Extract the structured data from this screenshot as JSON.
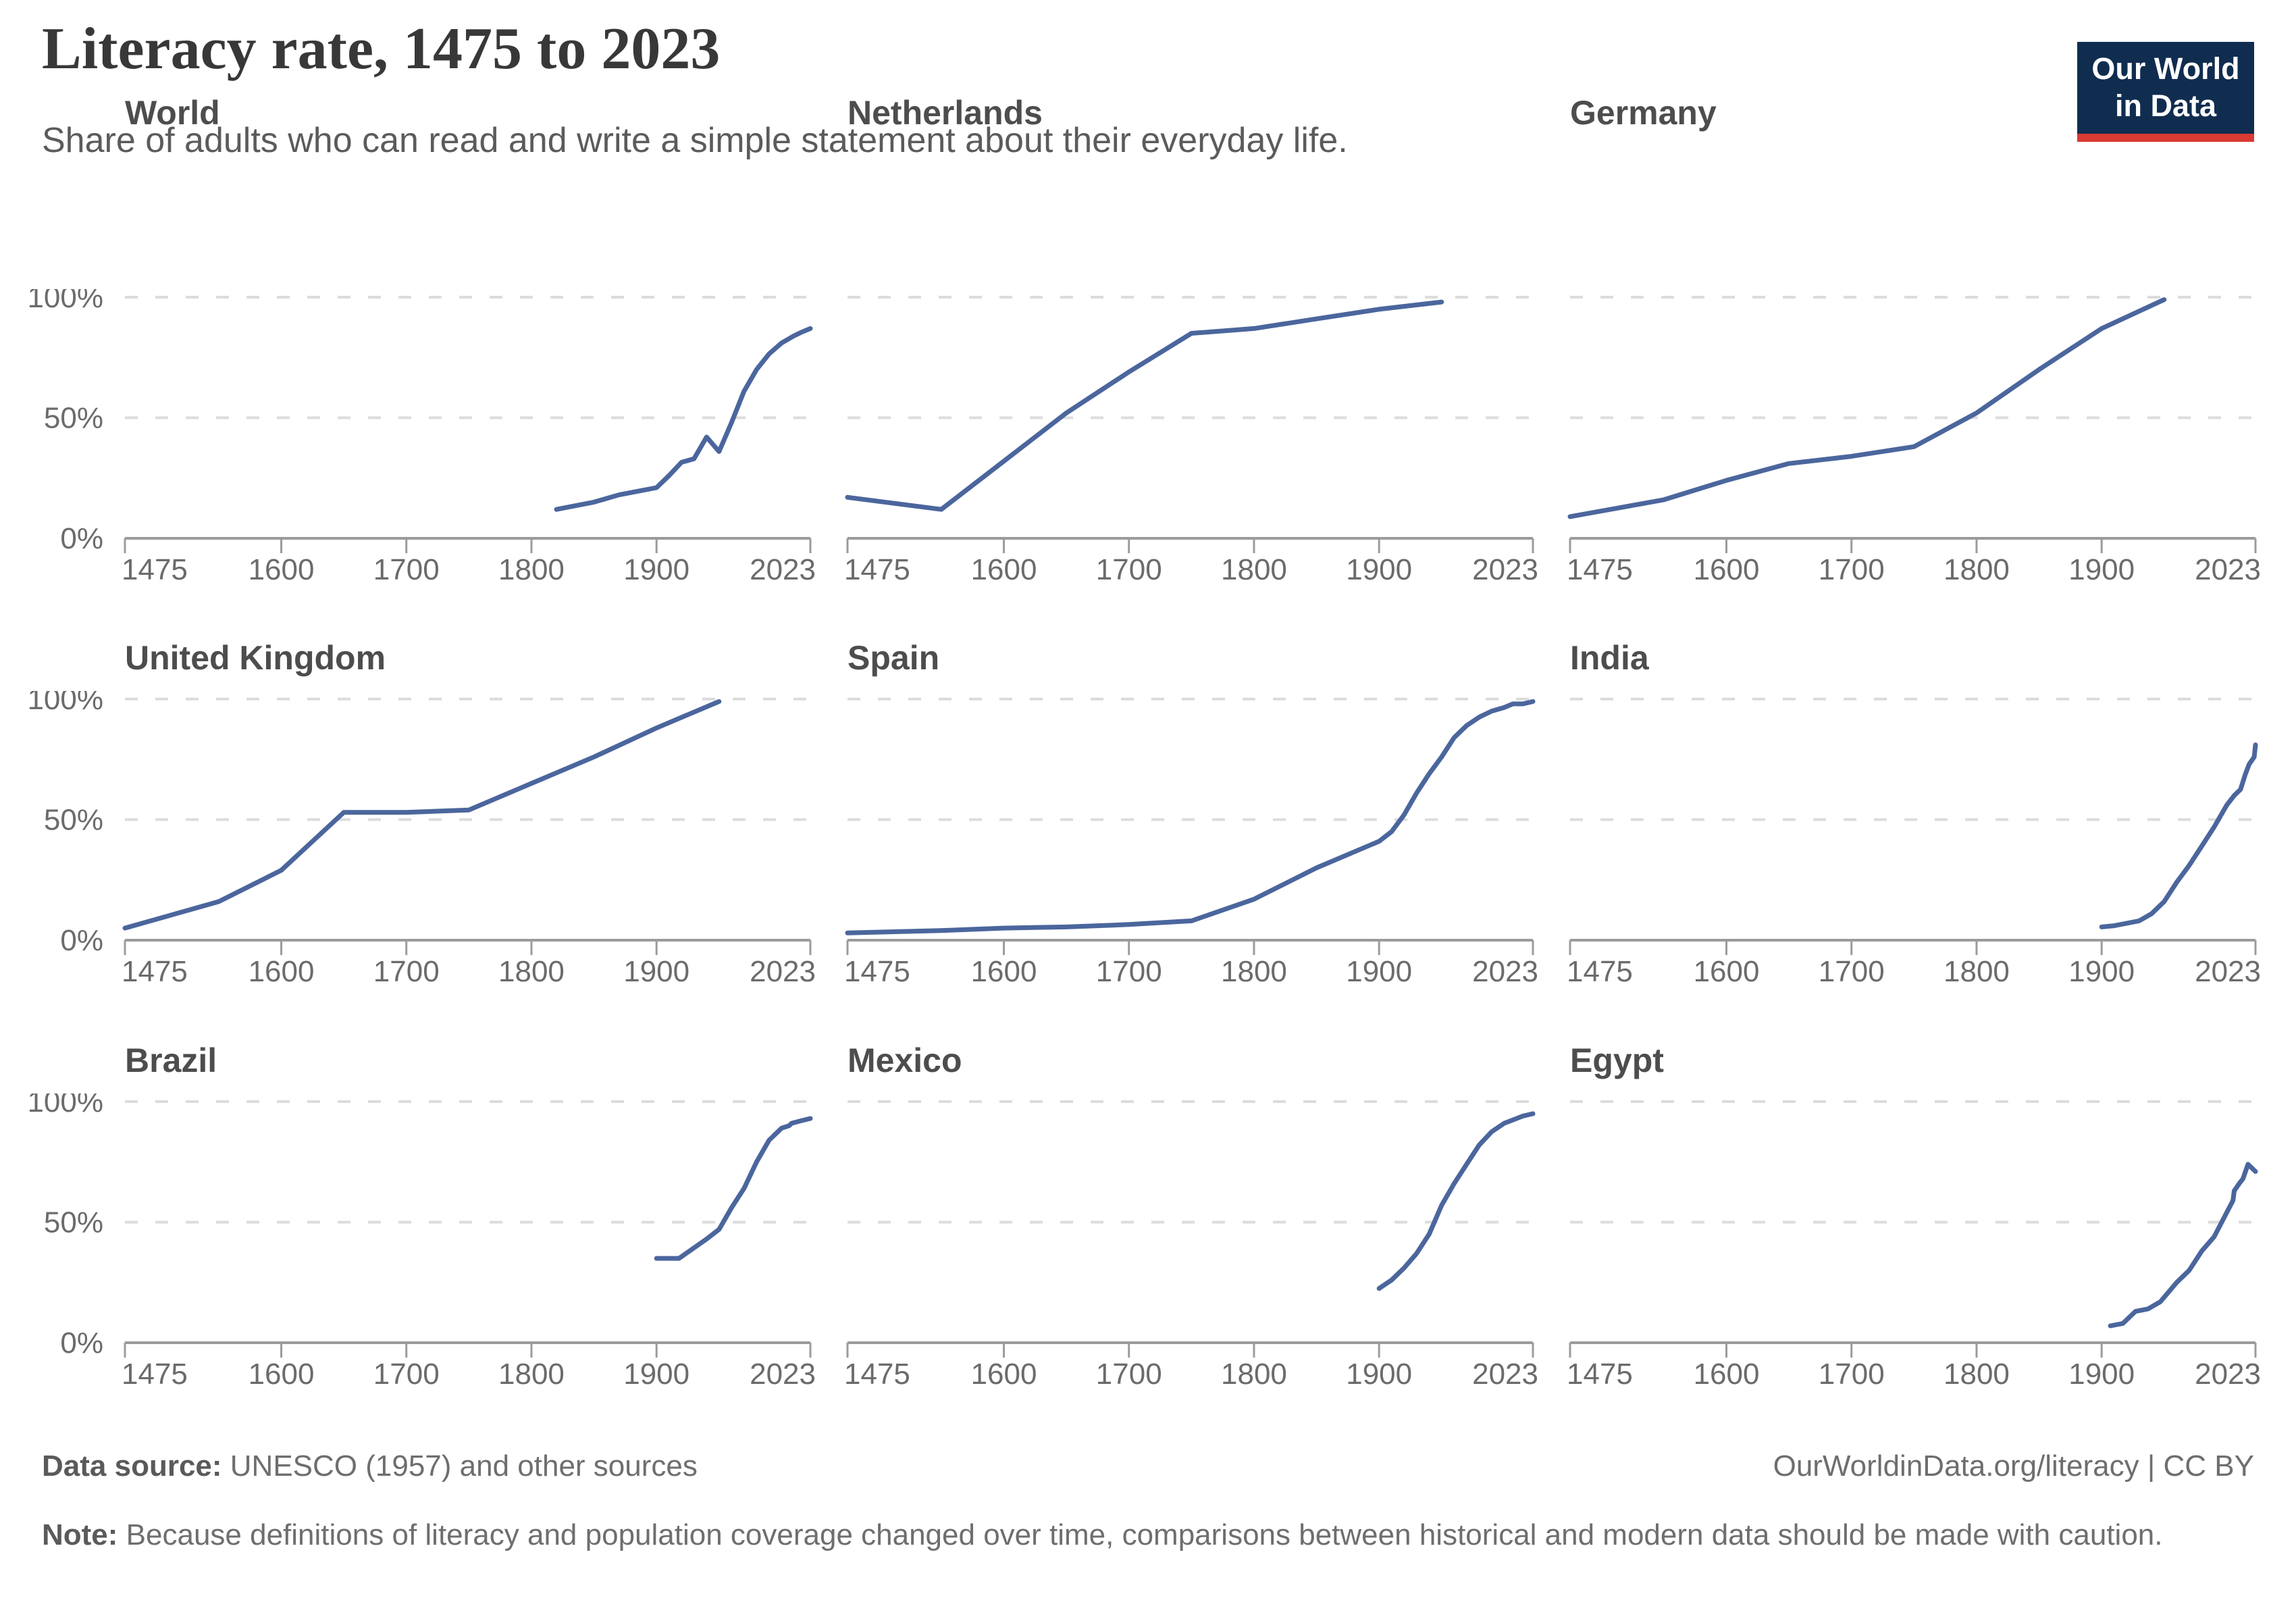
{
  "header": {
    "title": "Literacy rate, 1475 to 2023",
    "subtitle": "Share of adults who can read and write a simple statement about their everyday life.",
    "logo_line1": "Our World",
    "logo_line2": "in Data"
  },
  "colors": {
    "line": "#4b669d",
    "gridline": "#dcdcdc",
    "axis": "#9b9b9b",
    "tick_text": "#6b6b6b",
    "chart_title": "#4d4d4d",
    "logo_bg": "#102d4f",
    "logo_red": "#d93a34"
  },
  "axis": {
    "x_ticks": [
      1475,
      1600,
      1700,
      1800,
      1900,
      2023
    ],
    "x_range": [
      1475,
      2023
    ],
    "ylim": [
      0,
      100
    ],
    "y_gridlines": [
      50,
      100
    ],
    "y_labels": [
      "0%",
      "50%",
      "100%"
    ],
    "grid": "dashed horizontal at 50% and 100%, y labels on left column only"
  },
  "chart_data": [
    {
      "type": "line",
      "title": "World",
      "xlabel": "",
      "ylabel": "",
      "x_range": [
        1475,
        2023
      ],
      "ylim": [
        0,
        100
      ],
      "points": [
        [
          1820,
          12
        ],
        [
          1850,
          15
        ],
        [
          1870,
          18
        ],
        [
          1890,
          20
        ],
        [
          1900,
          21
        ],
        [
          1910,
          26
        ],
        [
          1920,
          31.5
        ],
        [
          1930,
          33
        ],
        [
          1940,
          42
        ],
        [
          1950,
          36
        ],
        [
          1960,
          48
        ],
        [
          1970,
          61
        ],
        [
          1980,
          70
        ],
        [
          1990,
          76.5
        ],
        [
          2000,
          81
        ],
        [
          2010,
          84
        ],
        [
          2016,
          85.5
        ],
        [
          2023,
          87
        ]
      ]
    },
    {
      "type": "line",
      "title": "Netherlands",
      "xlabel": "",
      "ylabel": "",
      "x_range": [
        1475,
        2023
      ],
      "ylim": [
        0,
        100
      ],
      "points": [
        [
          1475,
          17
        ],
        [
          1550,
          12
        ],
        [
          1600,
          32
        ],
        [
          1650,
          52
        ],
        [
          1700,
          69
        ],
        [
          1750,
          85
        ],
        [
          1800,
          87
        ],
        [
          1850,
          91
        ],
        [
          1900,
          95
        ],
        [
          1950,
          98
        ]
      ]
    },
    {
      "type": "line",
      "title": "Germany",
      "xlabel": "",
      "ylabel": "",
      "x_range": [
        1475,
        2023
      ],
      "ylim": [
        0,
        100
      ],
      "points": [
        [
          1475,
          9
        ],
        [
          1550,
          16
        ],
        [
          1600,
          24
        ],
        [
          1650,
          31
        ],
        [
          1700,
          34
        ],
        [
          1750,
          38
        ],
        [
          1800,
          52
        ],
        [
          1850,
          70
        ],
        [
          1900,
          87
        ],
        [
          1950,
          99
        ]
      ]
    },
    {
      "type": "line",
      "title": "United Kingdom",
      "xlabel": "",
      "ylabel": "",
      "x_range": [
        1475,
        2023
      ],
      "ylim": [
        0,
        100
      ],
      "points": [
        [
          1475,
          5
        ],
        [
          1550,
          16
        ],
        [
          1600,
          29
        ],
        [
          1650,
          53
        ],
        [
          1700,
          53
        ],
        [
          1750,
          54
        ],
        [
          1800,
          65
        ],
        [
          1850,
          76
        ],
        [
          1900,
          88
        ],
        [
          1950,
          99
        ]
      ]
    },
    {
      "type": "line",
      "title": "Spain",
      "xlabel": "",
      "ylabel": "",
      "x_range": [
        1475,
        2023
      ],
      "ylim": [
        0,
        100
      ],
      "points": [
        [
          1475,
          3
        ],
        [
          1550,
          4
        ],
        [
          1600,
          5
        ],
        [
          1650,
          5.5
        ],
        [
          1700,
          6.5
        ],
        [
          1750,
          8
        ],
        [
          1800,
          17
        ],
        [
          1850,
          30
        ],
        [
          1900,
          41
        ],
        [
          1910,
          45
        ],
        [
          1920,
          52
        ],
        [
          1930,
          61
        ],
        [
          1940,
          69
        ],
        [
          1950,
          76
        ],
        [
          1960,
          84
        ],
        [
          1970,
          89
        ],
        [
          1980,
          92.5
        ],
        [
          1990,
          95
        ],
        [
          2000,
          96.5
        ],
        [
          2007,
          98
        ],
        [
          2015,
          98
        ],
        [
          2023,
          99
        ]
      ]
    },
    {
      "type": "line",
      "title": "India",
      "xlabel": "",
      "ylabel": "",
      "x_range": [
        1475,
        2023
      ],
      "ylim": [
        0,
        100
      ],
      "points": [
        [
          1900,
          5.5
        ],
        [
          1910,
          6
        ],
        [
          1930,
          8
        ],
        [
          1940,
          11
        ],
        [
          1950,
          16
        ],
        [
          1960,
          24
        ],
        [
          1970,
          31
        ],
        [
          1980,
          39
        ],
        [
          1990,
          47
        ],
        [
          2000,
          56
        ],
        [
          2006,
          60
        ],
        [
          2011,
          62.5
        ],
        [
          2015,
          69
        ],
        [
          2018,
          73
        ],
        [
          2022,
          76
        ],
        [
          2023,
          81
        ]
      ]
    },
    {
      "type": "line",
      "title": "Brazil",
      "xlabel": "",
      "ylabel": "",
      "x_range": [
        1475,
        2023
      ],
      "ylim": [
        0,
        100
      ],
      "points": [
        [
          1900,
          35
        ],
        [
          1918,
          35
        ],
        [
          1940,
          43
        ],
        [
          1950,
          47
        ],
        [
          1960,
          56
        ],
        [
          1970,
          64
        ],
        [
          1980,
          75
        ],
        [
          1990,
          84
        ],
        [
          2000,
          89
        ],
        [
          2006,
          90
        ],
        [
          2008,
          91
        ],
        [
          2015,
          92
        ],
        [
          2023,
          93
        ]
      ]
    },
    {
      "type": "line",
      "title": "Mexico",
      "xlabel": "",
      "ylabel": "",
      "x_range": [
        1475,
        2023
      ],
      "ylim": [
        0,
        100
      ],
      "points": [
        [
          1900,
          22.5
        ],
        [
          1910,
          26
        ],
        [
          1920,
          31
        ],
        [
          1930,
          37
        ],
        [
          1940,
          45
        ],
        [
          1950,
          57
        ],
        [
          1960,
          66
        ],
        [
          1970,
          74
        ],
        [
          1980,
          82
        ],
        [
          1990,
          87.5
        ],
        [
          2000,
          91
        ],
        [
          2010,
          93
        ],
        [
          2015,
          94
        ],
        [
          2023,
          95
        ]
      ]
    },
    {
      "type": "line",
      "title": "Egypt",
      "xlabel": "",
      "ylabel": "",
      "x_range": [
        1475,
        2023
      ],
      "ylim": [
        0,
        100
      ],
      "points": [
        [
          1907,
          7
        ],
        [
          1917,
          8
        ],
        [
          1927,
          13
        ],
        [
          1937,
          14
        ],
        [
          1947,
          17
        ],
        [
          1960,
          25
        ],
        [
          1970,
          30
        ],
        [
          1980,
          38
        ],
        [
          1990,
          44
        ],
        [
          1996,
          50
        ],
        [
          2005,
          59
        ],
        [
          2006,
          63
        ],
        [
          2010,
          66
        ],
        [
          2013,
          68
        ],
        [
          2017,
          74
        ],
        [
          2023,
          71
        ]
      ]
    }
  ],
  "footer": {
    "source_label": "Data source:",
    "source_text": " UNESCO (1957) and other sources",
    "url_text": "OurWorldinData.org/literacy | CC BY",
    "note_label": "Note:",
    "note_text": " Because definitions of literacy and population coverage changed over time, comparisons between historical and modern data should be made with caution."
  }
}
